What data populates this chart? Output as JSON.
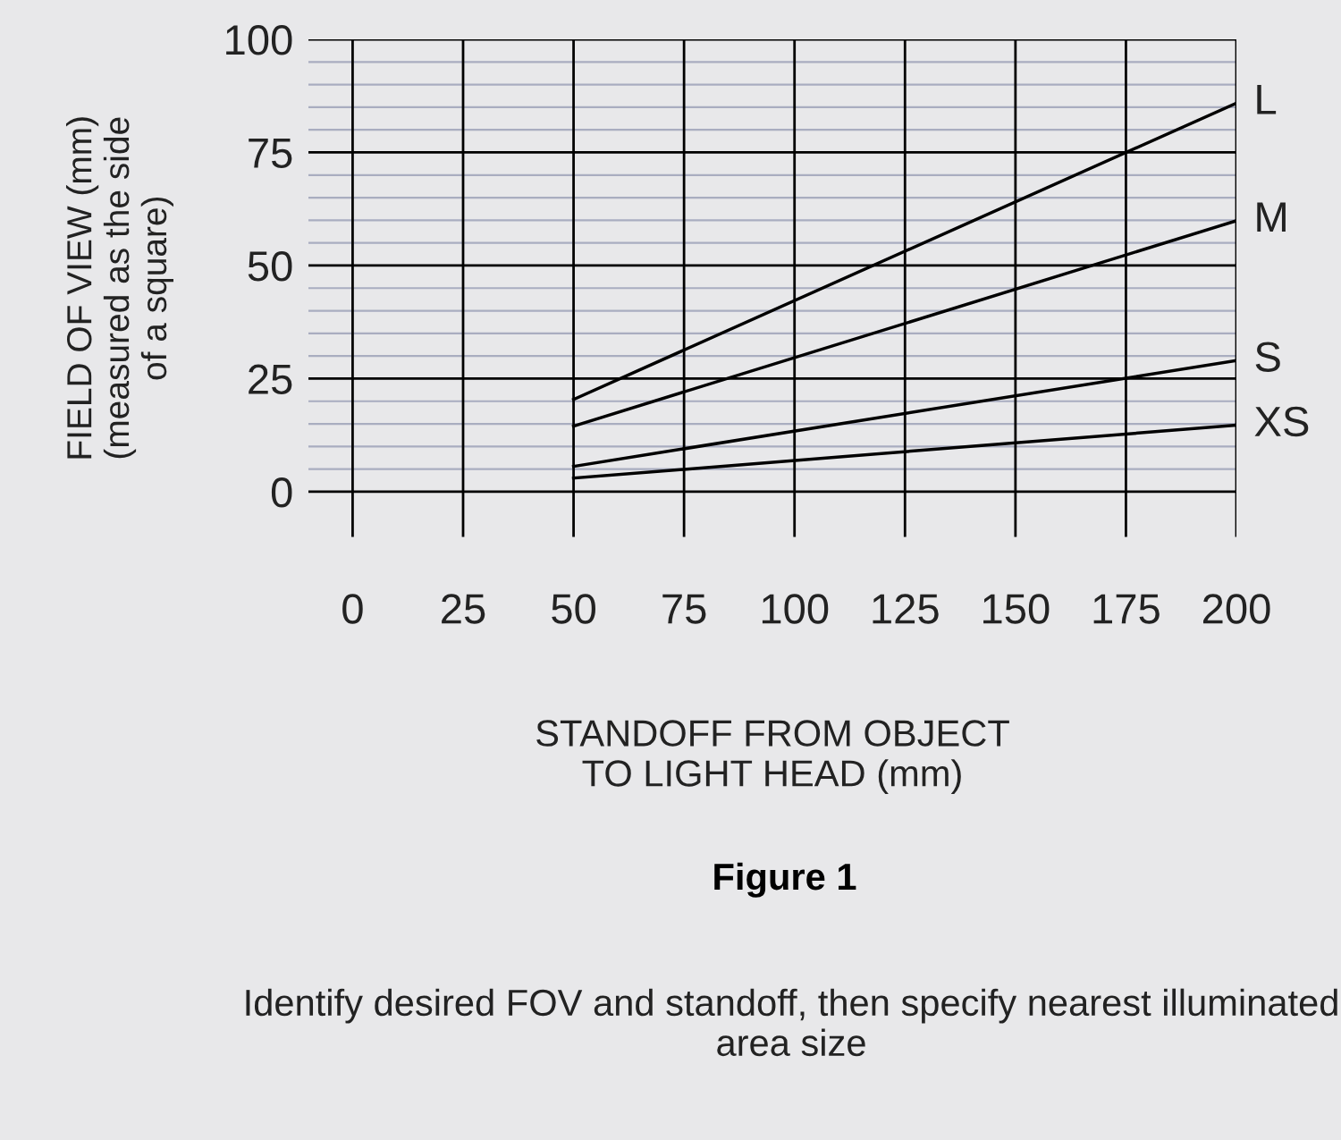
{
  "chart_data": {
    "type": "line",
    "xlabel": "STANDOFF FROM OBJECT\nTO LIGHT HEAD (mm)",
    "ylabel": "FIELD OF VIEW (mm)\n(measured as the side\nof a square)",
    "x": [
      50,
      200
    ],
    "series": [
      {
        "name": "L",
        "color": "#000000",
        "values": [
          20.4,
          85.9
        ]
      },
      {
        "name": "M",
        "color": "#000000",
        "values": [
          14.5,
          59.9
        ]
      },
      {
        "name": "S",
        "color": "#000000",
        "values": [
          5.6,
          29
        ]
      },
      {
        "name": "XS",
        "color": "#000000",
        "values": [
          3,
          14.7
        ]
      }
    ],
    "xlim": [
      -10,
      200
    ],
    "ylim": [
      -10,
      100
    ],
    "xticks": [
      0,
      25,
      50,
      75,
      100,
      125,
      150,
      175,
      200
    ],
    "yticks": [
      0,
      {
        "value": 5,
        "label": null
      },
      {
        "value": 10,
        "label": null
      },
      {
        "value": 15,
        "label": null
      },
      {
        "value": 20,
        "label": null
      },
      25,
      {
        "value": 30,
        "label": null
      },
      {
        "value": 35,
        "label": null
      },
      {
        "value": 40,
        "label": null
      },
      {
        "value": 45,
        "label": null
      },
      50,
      {
        "value": 55,
        "label": null
      },
      {
        "value": 60,
        "label": null
      },
      {
        "value": 65,
        "label": null
      },
      {
        "value": 70,
        "label": null
      },
      75,
      {
        "value": 80,
        "label": null
      },
      {
        "value": 85,
        "label": null
      },
      {
        "value": 90,
        "label": null
      },
      {
        "value": 95,
        "label": null
      },
      100
    ],
    "grid": true,
    "legend": false,
    "marker": "none",
    "line_style": "solid",
    "annotations": [
      "Figure 1",
      "Identify desired FOV and standoff, then specify nearest illuminated area size"
    ]
  }
}
